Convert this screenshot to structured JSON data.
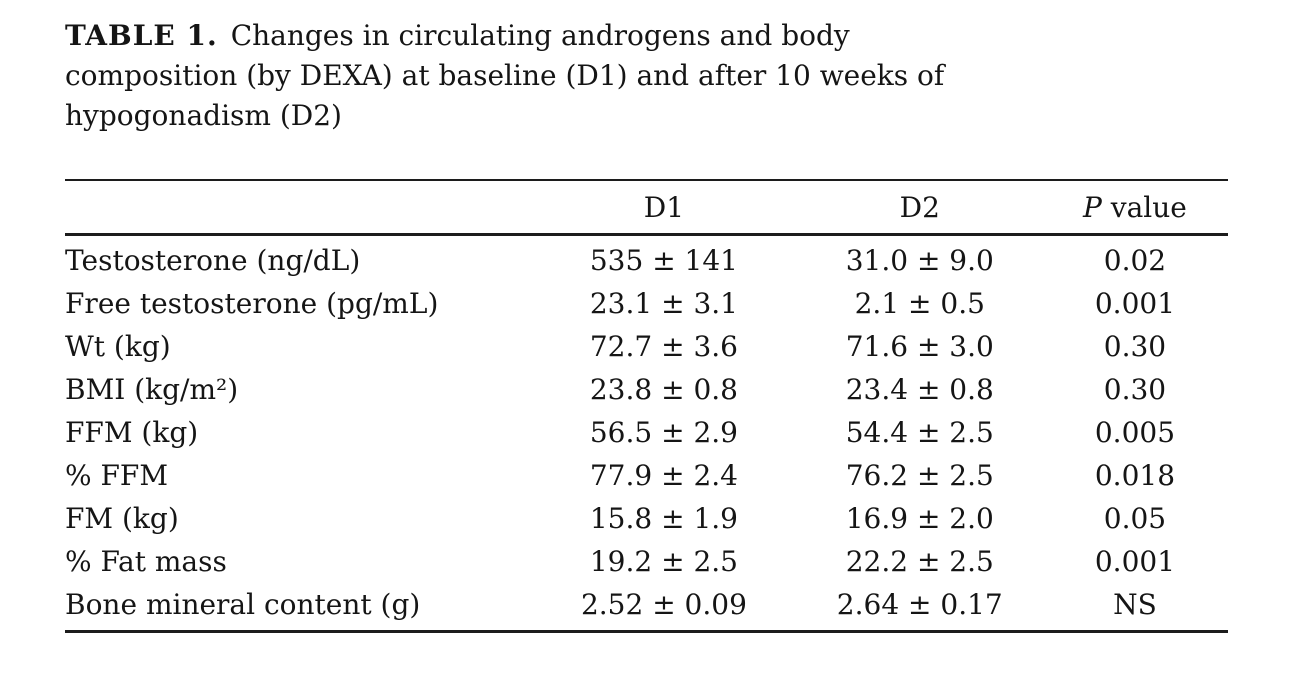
{
  "caption": {
    "label": "TABLE 1.",
    "line1": "Changes in circulating androgens and body",
    "line2": "composition (by DEXA) at baseline (D1) and after 10 weeks of",
    "line3": "hypogonadism (D2)"
  },
  "table": {
    "header": {
      "label_col": "",
      "d1": "D1",
      "d2": "D2",
      "p_italic": "P",
      "p_rest": " value"
    },
    "rows": [
      {
        "label": "Testosterone (ng/dL)",
        "d1": "535 ± 141",
        "d2": "31.0 ± 9.0",
        "p": "0.02"
      },
      {
        "label": "Free testosterone (pg/mL)",
        "d1": "23.1 ± 3.1",
        "d2": "2.1 ± 0.5",
        "p": "0.001"
      },
      {
        "label": "Wt (kg)",
        "d1": "72.7 ± 3.6",
        "d2": "71.6 ± 3.0",
        "p": "0.30"
      },
      {
        "label": "BMI (kg/m²)",
        "d1": "23.8 ± 0.8",
        "d2": "23.4 ± 0.8",
        "p": "0.30"
      },
      {
        "label": "FFM (kg)",
        "d1": "56.5 ± 2.9",
        "d2": "54.4 ± 2.5",
        "p": "0.005"
      },
      {
        "label": "% FFM",
        "d1": "77.9 ± 2.4",
        "d2": "76.2 ± 2.5",
        "p": "0.018"
      },
      {
        "label": "FM (kg)",
        "d1": "15.8 ± 1.9",
        "d2": "16.9 ± 2.0",
        "p": "0.05"
      },
      {
        "label": "% Fat mass",
        "d1": "19.2 ± 2.5",
        "d2": "22.2 ± 2.5",
        "p": "0.001"
      },
      {
        "label": "Bone mineral content (g)",
        "d1": "2.52 ± 0.09",
        "d2": "2.64 ± 0.17",
        "p": "NS"
      }
    ]
  },
  "chart_data": {
    "type": "table",
    "title": "TABLE 1. Changes in circulating androgens and body composition (by DEXA) at baseline (D1) and after 10 weeks of hypogonadism (D2)",
    "columns": [
      "",
      "D1",
      "D2",
      "P value"
    ],
    "rows": [
      [
        "Testosterone (ng/dL)",
        "535 ± 141",
        "31.0 ± 9.0",
        "0.02"
      ],
      [
        "Free testosterone (pg/mL)",
        "23.1 ± 3.1",
        "2.1 ± 0.5",
        "0.001"
      ],
      [
        "Wt (kg)",
        "72.7 ± 3.6",
        "71.6 ± 3.0",
        "0.30"
      ],
      [
        "BMI (kg/m²)",
        "23.8 ± 0.8",
        "23.4 ± 0.8",
        "0.30"
      ],
      [
        "FFM (kg)",
        "56.5 ± 2.9",
        "54.4 ± 2.5",
        "0.005"
      ],
      [
        "% FFM",
        "77.9 ± 2.4",
        "76.2 ± 2.5",
        "0.018"
      ],
      [
        "FM (kg)",
        "15.8 ± 1.9",
        "16.9 ± 2.0",
        "0.05"
      ],
      [
        "% Fat mass",
        "19.2 ± 2.5",
        "22.2 ± 2.5",
        "0.001"
      ],
      [
        "Bone mineral content (g)",
        "2.52 ± 0.09",
        "2.64 ± 0.17",
        "NS"
      ]
    ]
  }
}
